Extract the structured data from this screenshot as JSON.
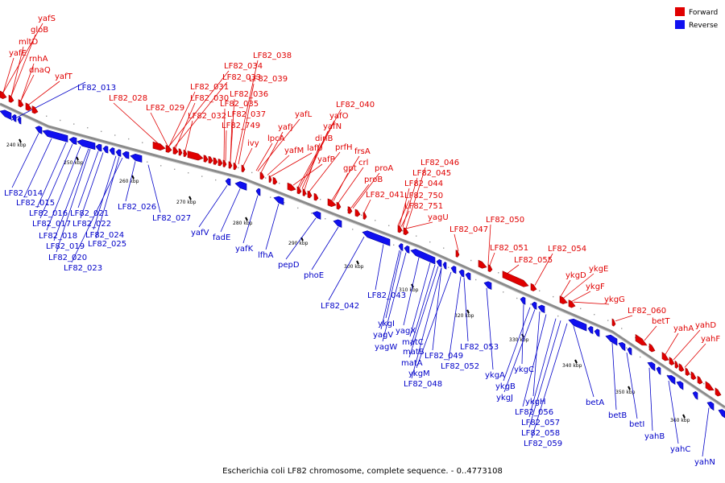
{
  "caption": "Escherichia coli LF82 chromosome, complete sequence. - 0..4773108",
  "legend": [
    {
      "label": "Forward",
      "color": "#e00000"
    },
    {
      "label": "Reverse",
      "color": "#1010f0"
    }
  ],
  "colors": {
    "forward": "#e00000",
    "reverse": "#1010f0",
    "leader_forward": "#e00000",
    "leader_reverse": "#0000c8",
    "backbone": "#8a8a8a"
  },
  "ticks": [
    "240 kbp",
    "250 kbp",
    "260 kbp",
    "270 kbp",
    "280 kbp",
    "290 kbp",
    "300 kbp",
    "310 kbp",
    "320 kbp",
    "330 kbp",
    "340 kbp",
    "350 kbp",
    "360 kbp"
  ],
  "forward_genes": [
    "yafS",
    "gloB",
    "mltD",
    "yafE",
    "rnhA",
    "dnaQ",
    "yafT",
    "LF82_038",
    "LF82_034",
    "LF82_033",
    "LF82_039",
    "LF82_031",
    "LF82_036",
    "LF82_028",
    "LF82_030",
    "LF82_035",
    "LF82_029",
    "LF82_037",
    "LF82_032",
    "LF82_749",
    "ivy",
    "LF82_040",
    "yafL",
    "yafO",
    "yafJ",
    "yafN",
    "lpcA",
    "dinB",
    "yafM",
    "lafU",
    "prfH",
    "frsA",
    "yafP",
    "crl",
    "gpt",
    "proA",
    "proB",
    "LF82_046",
    "LF82_045",
    "LF82_044",
    "LF82_750",
    "LF82_041",
    "LF82_751",
    "yagU",
    "LF82_050",
    "LF82_047",
    "LF82_051",
    "LF82_055",
    "LF82_054",
    "ykgE",
    "ykgD",
    "ykgF",
    "ykgG",
    "LF82_060",
    "betT",
    "yahA",
    "yahD",
    "yahF"
  ],
  "reverse_genes": [
    "LF82_013",
    "LF82_014",
    "LF82_015",
    "LF82_016",
    "LF82_026",
    "LF82_017",
    "LF82_021",
    "LF82_027",
    "LF82_022",
    "LF82_018",
    "LF82_024",
    "yafV",
    "LF82_019",
    "LF82_025",
    "fadE",
    "LF82_020",
    "yafK",
    "lfhA",
    "LF82_023",
    "pepD",
    "phoE",
    "LF82_043",
    "LF82_042",
    "ykgI",
    "yagV",
    "yagX",
    "yagW",
    "matC",
    "matB",
    "LF82_053",
    "LF82_049",
    "matA",
    "LF82_052",
    "ykgM",
    "LF82_048",
    "ykgA",
    "ykgC",
    "ykgB",
    "ykgJ",
    "ykgH",
    "betA",
    "LF82_056",
    "betB",
    "LF82_057",
    "betI",
    "LF82_058",
    "yahB",
    "LF82_059",
    "yahC",
    "yahN"
  ]
}
